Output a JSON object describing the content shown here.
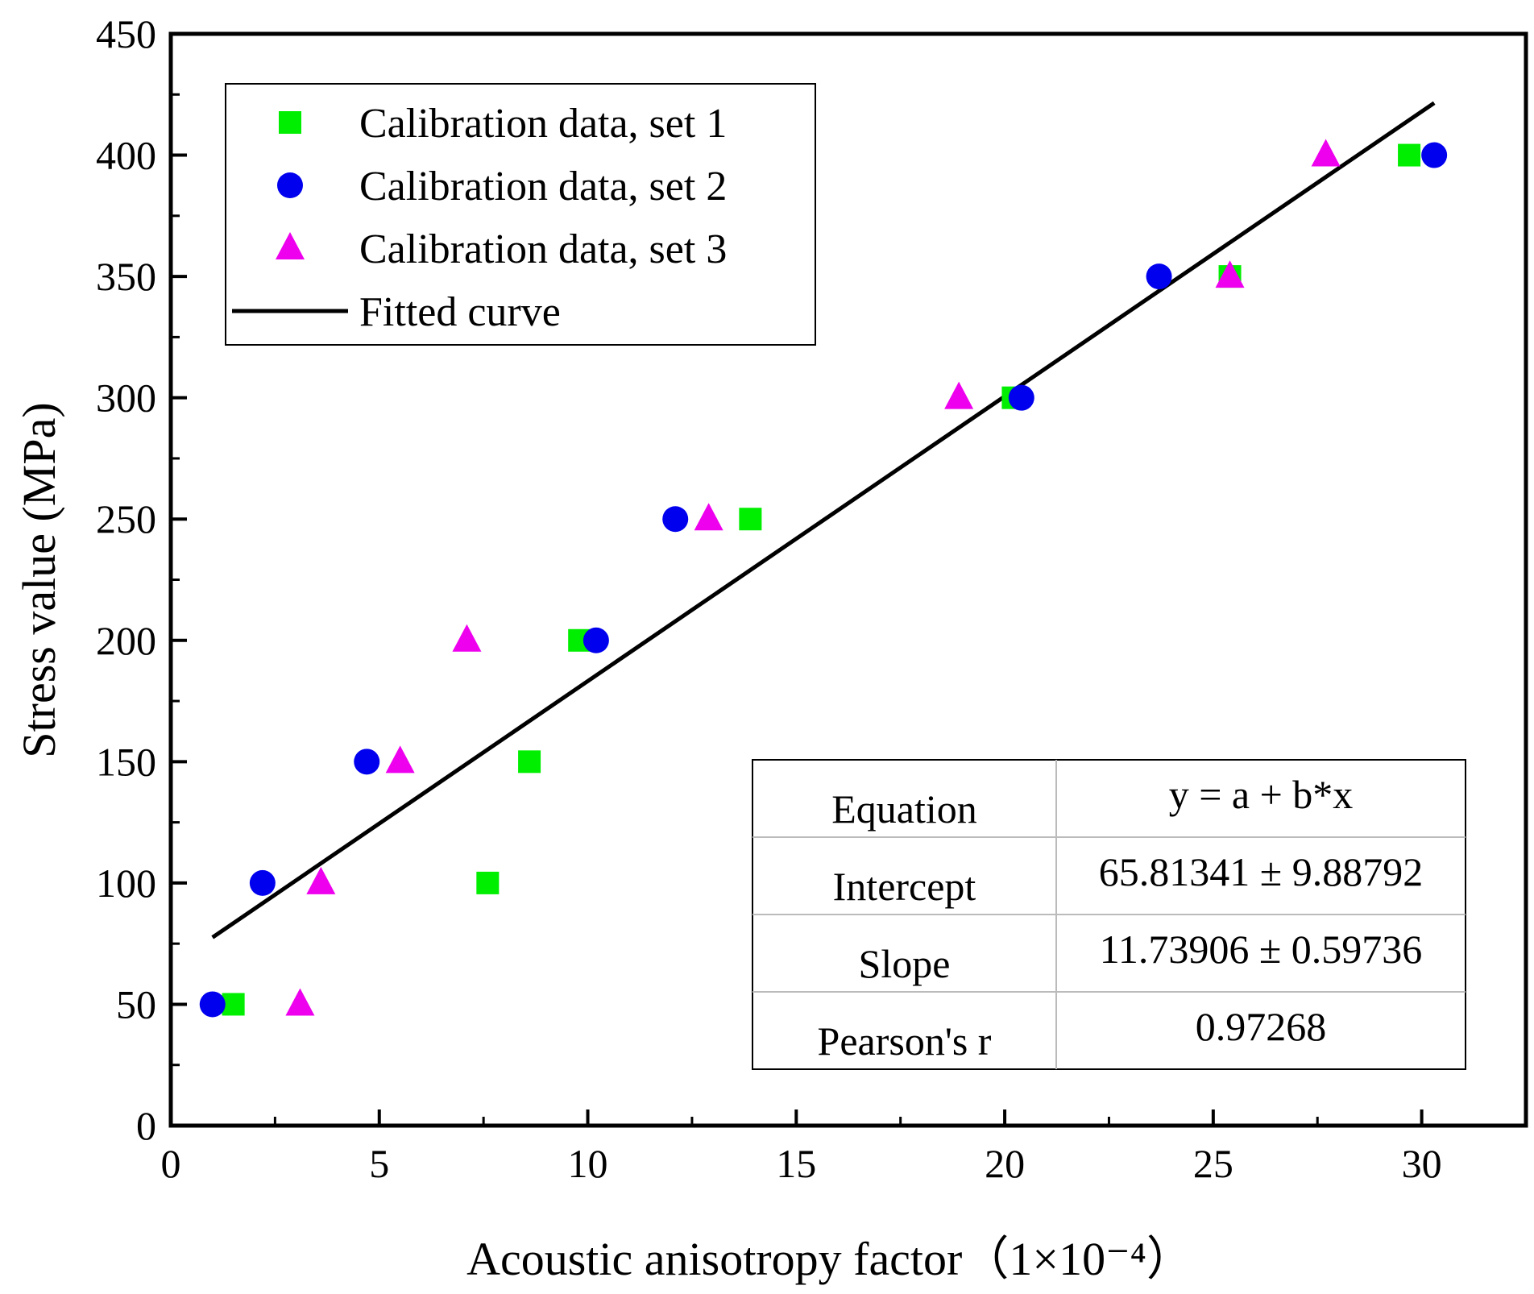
{
  "chart_data": {
    "type": "scatter",
    "xlabel": "Acoustic anisotropy factor（1×10⁻⁴）",
    "ylabel": "Stress value (MPa)",
    "xlim": [
      0,
      32.5
    ],
    "ylim": [
      0,
      450
    ],
    "x_ticks": [
      "0",
      "5",
      "10",
      "15",
      "20",
      "25",
      "30"
    ],
    "y_ticks": [
      "0",
      "50",
      "100",
      "150",
      "200",
      "250",
      "300",
      "350",
      "400",
      "450"
    ],
    "grid": false,
    "legend_position": "top-left",
    "series": [
      {
        "name": "Calibration data, set 1",
        "marker": "square",
        "color": "#00ee00",
        "points": [
          {
            "x": 1.5,
            "y": 50
          },
          {
            "x": 7.6,
            "y": 100
          },
          {
            "x": 8.6,
            "y": 150
          },
          {
            "x": 9.8,
            "y": 200
          },
          {
            "x": 13.9,
            "y": 250
          },
          {
            "x": 20.2,
            "y": 300
          },
          {
            "x": 25.4,
            "y": 350
          },
          {
            "x": 29.7,
            "y": 400
          }
        ]
      },
      {
        "name": "Calibration data, set 2",
        "marker": "circle",
        "color": "#0000ee",
        "points": [
          {
            "x": 1.0,
            "y": 50
          },
          {
            "x": 2.2,
            "y": 100
          },
          {
            "x": 4.7,
            "y": 150
          },
          {
            "x": 10.2,
            "y": 200
          },
          {
            "x": 12.1,
            "y": 250
          },
          {
            "x": 20.4,
            "y": 300
          },
          {
            "x": 23.7,
            "y": 350
          },
          {
            "x": 30.3,
            "y": 400
          }
        ]
      },
      {
        "name": "Calibration data, set 3",
        "marker": "triangle",
        "color": "#ee00ee",
        "points": [
          {
            "x": 3.1,
            "y": 50
          },
          {
            "x": 3.6,
            "y": 100
          },
          {
            "x": 5.5,
            "y": 150
          },
          {
            "x": 7.1,
            "y": 200
          },
          {
            "x": 12.9,
            "y": 250
          },
          {
            "x": 18.9,
            "y": 300
          },
          {
            "x": 25.4,
            "y": 350
          },
          {
            "x": 27.7,
            "y": 400
          }
        ]
      }
    ],
    "fit": {
      "name": "Fitted curve",
      "color": "#000000",
      "intercept": 65.81341,
      "slope": 11.73906,
      "x_range": [
        1.0,
        30.3
      ]
    },
    "stats_table": [
      {
        "label": "Equation",
        "value": "y = a + b*x"
      },
      {
        "label": "Intercept",
        "value": "65.81341 ± 9.88792"
      },
      {
        "label": "Slope",
        "value": "11.73906 ± 0.59736"
      },
      {
        "label": "Pearson's r",
        "value": "0.97268"
      }
    ]
  }
}
